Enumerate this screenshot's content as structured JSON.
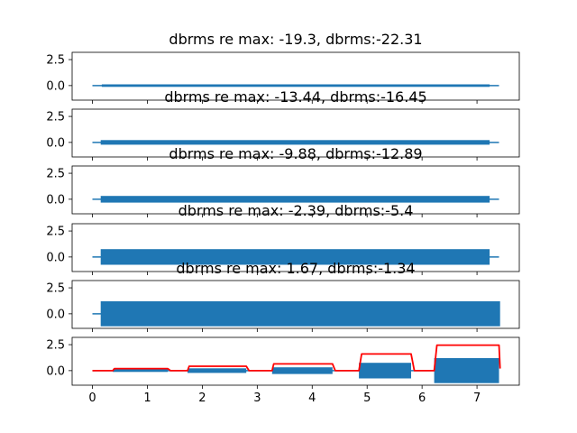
{
  "chart_data": [
    {
      "type": "line",
      "title": "dbrms re max: -19.3, dbrms:-22.31",
      "xlim": [
        -0.37,
        7.77
      ],
      "ylim": [
        -1.4,
        3.2
      ],
      "yticks": [
        "2.5",
        "0.0"
      ],
      "ytick_values": [
        2.5,
        0.0
      ],
      "series": [
        {
          "style": "flat",
          "color": "#1f77b4",
          "x": [
            0,
            7.4
          ],
          "y": [
            0,
            0
          ]
        },
        {
          "style": "band",
          "color": "#1f77b4",
          "x": [
            0.17,
            7.23
          ],
          "ymin": [
            -0.12,
            -0.12
          ],
          "ymax": [
            0.12,
            0.12
          ]
        }
      ]
    },
    {
      "type": "line",
      "title": "dbrms re max: -13.44, dbrms:-16.45",
      "xlim": [
        -0.37,
        7.77
      ],
      "ylim": [
        -1.4,
        3.2
      ],
      "yticks": [
        "2.5",
        "0.0"
      ],
      "ytick_values": [
        2.5,
        0.0
      ],
      "series": [
        {
          "style": "flat",
          "color": "#1f77b4",
          "x": [
            0,
            7.4
          ],
          "y": [
            0,
            0
          ]
        },
        {
          "style": "band",
          "color": "#1f77b4",
          "x": [
            0.15,
            7.23
          ],
          "ymin": [
            -0.22,
            -0.22
          ],
          "ymax": [
            0.22,
            0.22
          ]
        }
      ]
    },
    {
      "type": "line",
      "title": "dbrms re max: -9.88, dbrms:-12.89",
      "xlim": [
        -0.37,
        7.77
      ],
      "ylim": [
        -1.4,
        3.2
      ],
      "yticks": [
        "2.5",
        "0.0"
      ],
      "ytick_values": [
        2.5,
        0.0
      ],
      "series": [
        {
          "style": "flat",
          "color": "#1f77b4",
          "x": [
            0,
            7.4
          ],
          "y": [
            0,
            0
          ]
        },
        {
          "style": "band",
          "color": "#1f77b4",
          "x": [
            0.15,
            7.23
          ],
          "ymin": [
            -0.32,
            -0.32
          ],
          "ymax": [
            0.32,
            0.32
          ]
        }
      ]
    },
    {
      "type": "line",
      "title": "dbrms re max: -2.39, dbrms:-5.4",
      "xlim": [
        -0.37,
        7.77
      ],
      "ylim": [
        -1.4,
        3.2
      ],
      "yticks": [
        "2.5",
        "0.0"
      ],
      "ytick_values": [
        2.5,
        0.0
      ],
      "series": [
        {
          "style": "flat",
          "color": "#1f77b4",
          "x": [
            0,
            7.4
          ],
          "y": [
            0,
            0
          ]
        },
        {
          "style": "band",
          "color": "#1f77b4",
          "x": [
            0.15,
            7.23
          ],
          "ymin": [
            -0.75,
            -0.75
          ],
          "ymax": [
            0.75,
            0.75
          ]
        }
      ]
    },
    {
      "type": "line",
      "title": "dbrms re max: 1.67, dbrms:-1.34",
      "xlim": [
        -0.37,
        7.77
      ],
      "ylim": [
        -1.4,
        3.2
      ],
      "yticks": [
        "2.5",
        "0.0"
      ],
      "ytick_values": [
        2.5,
        0.0
      ],
      "series": [
        {
          "style": "flat",
          "color": "#1f77b4",
          "x": [
            0,
            7.4
          ],
          "y": [
            0,
            0
          ]
        },
        {
          "style": "band",
          "color": "#1f77b4",
          "x": [
            0.15,
            7.42
          ],
          "ymin": [
            -1.2,
            -1.2
          ],
          "ymax": [
            1.2,
            1.2
          ]
        }
      ]
    },
    {
      "type": "line",
      "title": "",
      "xlim": [
        -0.37,
        7.77
      ],
      "ylim": [
        -1.4,
        3.2
      ],
      "yticks": [
        "2.5",
        "0.0"
      ],
      "ytick_values": [
        2.5,
        0.0
      ],
      "xticks": [
        "0",
        "1",
        "2",
        "3",
        "4",
        "5",
        "6",
        "7"
      ],
      "xtick_values": [
        0,
        1,
        2,
        3,
        4,
        5,
        6,
        7
      ],
      "series": [
        {
          "style": "flat",
          "color": "#1f77b4",
          "x": [
            0,
            7.4
          ],
          "y": [
            0,
            0
          ]
        },
        {
          "style": "band",
          "color": "#1f77b4",
          "x": [
            0.37,
            1.37
          ],
          "ymin": [
            -0.12,
            -0.12
          ],
          "ymax": [
            0.12,
            0.12
          ]
        },
        {
          "style": "band",
          "color": "#1f77b4",
          "x": [
            1.73,
            2.8
          ],
          "ymin": [
            -0.22,
            -0.22
          ],
          "ymax": [
            0.22,
            0.22
          ]
        },
        {
          "style": "band",
          "color": "#1f77b4",
          "x": [
            3.27,
            4.37
          ],
          "ymin": [
            -0.32,
            -0.32
          ],
          "ymax": [
            0.32,
            0.32
          ]
        },
        {
          "style": "band",
          "color": "#1f77b4",
          "x": [
            4.85,
            5.8
          ],
          "ymin": [
            -0.75,
            -0.75
          ],
          "ymax": [
            0.75,
            0.75
          ]
        },
        {
          "style": "band",
          "color": "#1f77b4",
          "x": [
            6.22,
            7.4
          ],
          "ymin": [
            -1.2,
            -1.2
          ],
          "ymax": [
            1.2,
            1.2
          ]
        },
        {
          "style": "envelope",
          "color": "#ff0000",
          "x": [
            0,
            0.37,
            0.4,
            1.37,
            1.42,
            1.73,
            1.76,
            2.8,
            2.85,
            3.27,
            3.3,
            4.37,
            4.42,
            4.85,
            4.9,
            5.8,
            5.86,
            6.22,
            6.27,
            7.4,
            7.42
          ],
          "y": [
            0,
            0,
            0.2,
            0.2,
            0,
            0,
            0.42,
            0.42,
            0,
            0,
            0.65,
            0.65,
            0,
            0,
            1.6,
            1.6,
            0,
            0,
            2.45,
            2.45,
            0.2
          ]
        }
      ]
    }
  ]
}
